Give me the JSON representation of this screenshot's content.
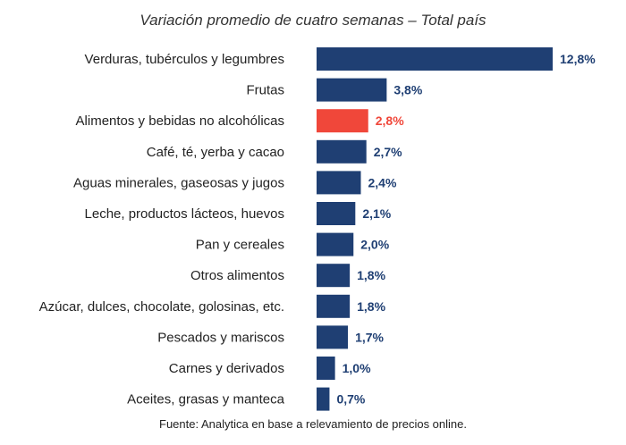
{
  "chart_data": {
    "type": "bar",
    "orientation": "horizontal",
    "title": "Variación promedio de cuatro semanas – Total país",
    "categories": [
      "Verduras, tubérculos y legumbres",
      "Frutas",
      "Alimentos y bebidas no alcohólicas",
      "Café, té, yerba y cacao",
      "Aguas minerales, gaseosas y jugos",
      "Leche, productos lácteos, huevos",
      "Pan y cereales",
      "Otros alimentos",
      "Azúcar, dulces, chocolate, golosinas, etc.",
      "Pescados y mariscos",
      "Carnes y derivados",
      "Aceites, grasas y manteca"
    ],
    "values": [
      12.8,
      3.8,
      2.8,
      2.7,
      2.4,
      2.1,
      2.0,
      1.8,
      1.8,
      1.7,
      1.0,
      0.7
    ],
    "value_labels": [
      "12,8%",
      "3,8%",
      "2,8%",
      "2,7%",
      "2,4%",
      "2,1%",
      "2,0%",
      "1,8%",
      "1,8%",
      "1,7%",
      "1,0%",
      "0,7%"
    ],
    "highlight_index": 2,
    "colors": {
      "bar": "#1f3f73",
      "highlight": "#f0473a"
    },
    "xlim": [
      0,
      12.8
    ],
    "grid": false
  },
  "source": "Fuente: Analytica en base a relevamiento de precios online."
}
